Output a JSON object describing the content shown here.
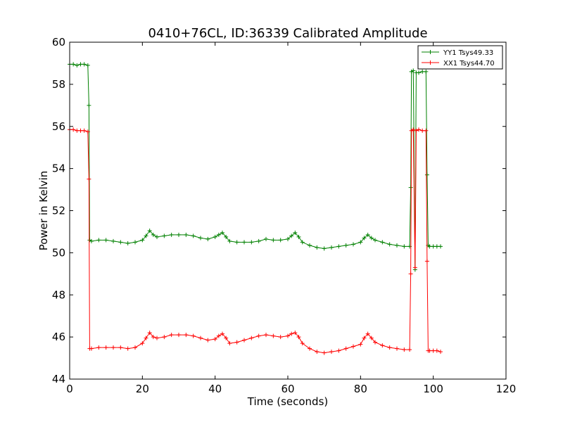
{
  "chart_data": {
    "type": "line",
    "title": "0410+76CL, ID:36339 Calibrated Amplitude",
    "xlabel": "Time (seconds)",
    "ylabel": "Power in Kelvin",
    "xlim": [
      0,
      120
    ],
    "ylim": [
      44,
      60
    ],
    "x_ticks": [
      0,
      20,
      40,
      60,
      80,
      100,
      120
    ],
    "y_ticks": [
      44,
      46,
      48,
      50,
      52,
      54,
      56,
      58,
      60
    ],
    "grid": false,
    "legend_position": "top-right",
    "marker": "+",
    "series": [
      {
        "name": "YY1 Tsys49.33",
        "color": "#008000",
        "points": [
          [
            0,
            58.95
          ],
          [
            1,
            58.95
          ],
          [
            2,
            58.9
          ],
          [
            3,
            58.95
          ],
          [
            4,
            58.95
          ],
          [
            5,
            58.9
          ],
          [
            5.3,
            57.0
          ],
          [
            5.5,
            50.6
          ],
          [
            6,
            50.55
          ],
          [
            8,
            50.6
          ],
          [
            10,
            50.6
          ],
          [
            12,
            50.55
          ],
          [
            14,
            50.5
          ],
          [
            16,
            50.45
          ],
          [
            18,
            50.5
          ],
          [
            20,
            50.6
          ],
          [
            21,
            50.8
          ],
          [
            22,
            51.05
          ],
          [
            23,
            50.85
          ],
          [
            24,
            50.75
          ],
          [
            26,
            50.8
          ],
          [
            28,
            50.85
          ],
          [
            30,
            50.85
          ],
          [
            32,
            50.85
          ],
          [
            34,
            50.8
          ],
          [
            36,
            50.7
          ],
          [
            38,
            50.65
          ],
          [
            40,
            50.75
          ],
          [
            41,
            50.85
          ],
          [
            42,
            50.95
          ],
          [
            43,
            50.75
          ],
          [
            44,
            50.55
          ],
          [
            46,
            50.5
          ],
          [
            48,
            50.5
          ],
          [
            50,
            50.5
          ],
          [
            52,
            50.55
          ],
          [
            54,
            50.65
          ],
          [
            56,
            50.6
          ],
          [
            58,
            50.6
          ],
          [
            60,
            50.65
          ],
          [
            61,
            50.8
          ],
          [
            62,
            50.95
          ],
          [
            63,
            50.75
          ],
          [
            64,
            50.5
          ],
          [
            66,
            50.35
          ],
          [
            68,
            50.25
          ],
          [
            70,
            50.2
          ],
          [
            72,
            50.25
          ],
          [
            74,
            50.3
          ],
          [
            76,
            50.35
          ],
          [
            78,
            50.4
          ],
          [
            80,
            50.5
          ],
          [
            81,
            50.7
          ],
          [
            82,
            50.85
          ],
          [
            83,
            50.7
          ],
          [
            84,
            50.6
          ],
          [
            86,
            50.5
          ],
          [
            88,
            50.4
          ],
          [
            90,
            50.35
          ],
          [
            92,
            50.3
          ],
          [
            93.5,
            50.3
          ],
          [
            93.8,
            53.1
          ],
          [
            94.0,
            58.6
          ],
          [
            94.5,
            58.65
          ],
          [
            95.0,
            49.2
          ],
          [
            95.3,
            58.55
          ],
          [
            96,
            58.55
          ],
          [
            97,
            58.6
          ],
          [
            98,
            58.6
          ],
          [
            98.3,
            53.7
          ],
          [
            98.6,
            50.35
          ],
          [
            99,
            50.3
          ],
          [
            100,
            50.3
          ],
          [
            101,
            50.3
          ],
          [
            102,
            50.3
          ]
        ]
      },
      {
        "name": "XX1 Tsys44.70",
        "color": "#ff0000",
        "points": [
          [
            0,
            55.85
          ],
          [
            1,
            55.85
          ],
          [
            2,
            55.8
          ],
          [
            3,
            55.8
          ],
          [
            4,
            55.8
          ],
          [
            5,
            55.75
          ],
          [
            5.3,
            53.5
          ],
          [
            5.5,
            45.45
          ],
          [
            6,
            45.45
          ],
          [
            8,
            45.5
          ],
          [
            10,
            45.5
          ],
          [
            12,
            45.5
          ],
          [
            14,
            45.5
          ],
          [
            16,
            45.45
          ],
          [
            18,
            45.5
          ],
          [
            20,
            45.7
          ],
          [
            21,
            45.95
          ],
          [
            22,
            46.2
          ],
          [
            23,
            46.0
          ],
          [
            24,
            45.95
          ],
          [
            26,
            46.0
          ],
          [
            28,
            46.1
          ],
          [
            30,
            46.1
          ],
          [
            32,
            46.1
          ],
          [
            34,
            46.05
          ],
          [
            36,
            45.95
          ],
          [
            38,
            45.85
          ],
          [
            40,
            45.9
          ],
          [
            41,
            46.05
          ],
          [
            42,
            46.15
          ],
          [
            43,
            45.95
          ],
          [
            44,
            45.7
          ],
          [
            46,
            45.75
          ],
          [
            48,
            45.85
          ],
          [
            50,
            45.95
          ],
          [
            52,
            46.05
          ],
          [
            54,
            46.1
          ],
          [
            56,
            46.05
          ],
          [
            58,
            46.0
          ],
          [
            60,
            46.05
          ],
          [
            61,
            46.15
          ],
          [
            62,
            46.2
          ],
          [
            63,
            46.0
          ],
          [
            64,
            45.7
          ],
          [
            66,
            45.45
          ],
          [
            68,
            45.3
          ],
          [
            70,
            45.25
          ],
          [
            72,
            45.3
          ],
          [
            74,
            45.35
          ],
          [
            76,
            45.45
          ],
          [
            78,
            45.55
          ],
          [
            80,
            45.65
          ],
          [
            81,
            45.95
          ],
          [
            82,
            46.15
          ],
          [
            83,
            45.95
          ],
          [
            84,
            45.75
          ],
          [
            86,
            45.6
          ],
          [
            88,
            45.5
          ],
          [
            90,
            45.45
          ],
          [
            92,
            45.4
          ],
          [
            93.5,
            45.4
          ],
          [
            93.8,
            49.0
          ],
          [
            94.0,
            55.8
          ],
          [
            94.5,
            55.85
          ],
          [
            95.0,
            49.3
          ],
          [
            95.3,
            55.8
          ],
          [
            96,
            55.85
          ],
          [
            97,
            55.8
          ],
          [
            98,
            55.8
          ],
          [
            98.3,
            49.6
          ],
          [
            98.6,
            45.35
          ],
          [
            99,
            45.35
          ],
          [
            100,
            45.35
          ],
          [
            101,
            45.35
          ],
          [
            102,
            45.3
          ]
        ]
      }
    ]
  }
}
